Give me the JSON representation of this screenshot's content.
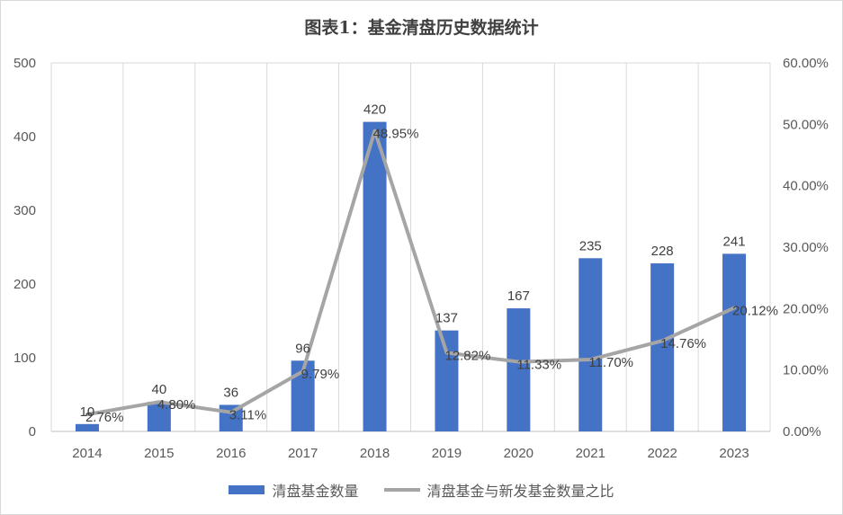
{
  "chart_data": {
    "type": "bar",
    "title": "图表1：基金清盘历史数据统计",
    "categories": [
      "2014",
      "2015",
      "2016",
      "2017",
      "2018",
      "2019",
      "2020",
      "2021",
      "2022",
      "2023"
    ],
    "series": [
      {
        "name": "清盘基金数量",
        "type": "bar",
        "axis": "left",
        "color": "#4472c4",
        "values": [
          10,
          40,
          36,
          96,
          420,
          137,
          167,
          235,
          228,
          241
        ],
        "labels": [
          "10",
          "40",
          "36",
          "96",
          "420",
          "137",
          "167",
          "235",
          "228",
          "241"
        ]
      },
      {
        "name": "清盘基金与新发基金数量之比",
        "type": "line",
        "axis": "right",
        "color": "#a5a5a5",
        "values": [
          2.76,
          4.8,
          3.11,
          9.79,
          48.95,
          12.82,
          11.33,
          11.7,
          14.76,
          20.12
        ],
        "labels": [
          "2.76%",
          "4.80%",
          "3.11%",
          "9.79%",
          "48.95%",
          "12.82%",
          "11.33%",
          "11.70%",
          "14.76%",
          "20.12%"
        ]
      }
    ],
    "y_left": {
      "min": 0,
      "max": 500,
      "ticks": [
        0,
        100,
        200,
        300,
        400,
        500
      ],
      "tick_labels": [
        "0",
        "100",
        "200",
        "300",
        "400",
        "500"
      ]
    },
    "y_right": {
      "min": 0,
      "max": 60,
      "ticks": [
        0,
        10,
        20,
        30,
        40,
        50,
        60
      ],
      "tick_labels": [
        "0.00%",
        "10.00%",
        "20.00%",
        "30.00%",
        "40.00%",
        "50.00%",
        "60.00%"
      ]
    },
    "grid": "vertical",
    "legend_position": "bottom"
  }
}
